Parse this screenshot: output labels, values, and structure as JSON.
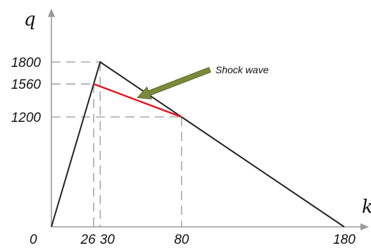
{
  "chart_data": {
    "type": "line",
    "xlabel": "k",
    "ylabel": "q",
    "xlim": [
      0,
      180
    ],
    "ylim": [
      0,
      1800
    ],
    "x_tick_labels": [
      "26",
      "30",
      "80",
      "180"
    ],
    "x_ticks": [
      26,
      30,
      80,
      180
    ],
    "y_tick_labels": [
      "1800",
      "1560",
      "1200"
    ],
    "y_ticks": [
      1800,
      1560,
      1200
    ],
    "origin_label": "0",
    "series": [
      {
        "points": [
          [
            0,
            0
          ],
          [
            30,
            1800
          ],
          [
            180,
            0
          ]
        ],
        "color": "#222222"
      },
      {
        "points": [
          [
            26,
            1560
          ],
          [
            80,
            1200
          ]
        ],
        "color": "#e8141c"
      }
    ],
    "guides": [
      {
        "x": 30,
        "y": 1800
      },
      {
        "x": 26,
        "y": 1560
      },
      {
        "x": 80,
        "y": 1200
      }
    ],
    "annotation": {
      "text": "Shock wave",
      "target": [
        52,
        1380
      ],
      "arrow_color": "#7b8a3a"
    },
    "guide_color": "#a8a8a8"
  }
}
